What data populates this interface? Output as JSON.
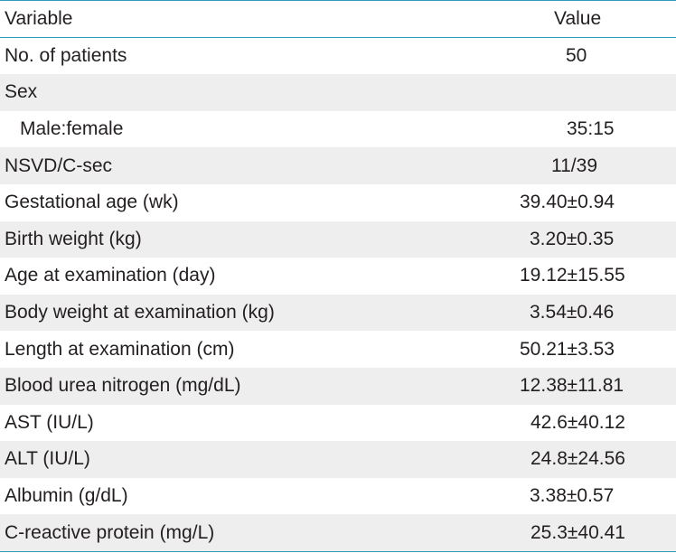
{
  "table": {
    "header": {
      "variable": "Variable",
      "value": "Value"
    },
    "rows": [
      {
        "variable": "No. of patients",
        "value": "50"
      },
      {
        "variable": "Sex",
        "value": ""
      },
      {
        "variable": "Male:female",
        "value": "35:15"
      },
      {
        "variable": "NSVD/C-sec",
        "value": "11/39"
      },
      {
        "variable": "Gestational age (wk)",
        "value": "39.40±0.94"
      },
      {
        "variable": "Birth weight (kg)",
        "value": "3.20±0.35"
      },
      {
        "variable": "Age at examination (day)",
        "value": "19.12±15.55"
      },
      {
        "variable": "Body weight at examination (kg)",
        "value": "3.54±0.46"
      },
      {
        "variable": "Length at examination (cm)",
        "value": "50.21±3.53"
      },
      {
        "variable": "Blood urea nitrogen (mg/dL)",
        "value": "12.38±11.81"
      },
      {
        "variable": "AST (IU/L)",
        "value": "42.6±40.12"
      },
      {
        "variable": "ALT (IU/L)",
        "value": "24.8±24.56"
      },
      {
        "variable": "Albumin (g/dL)",
        "value": "3.38±0.57"
      },
      {
        "variable": "C-reactive protein (mg/L)",
        "value": "25.3±40.41"
      }
    ]
  }
}
